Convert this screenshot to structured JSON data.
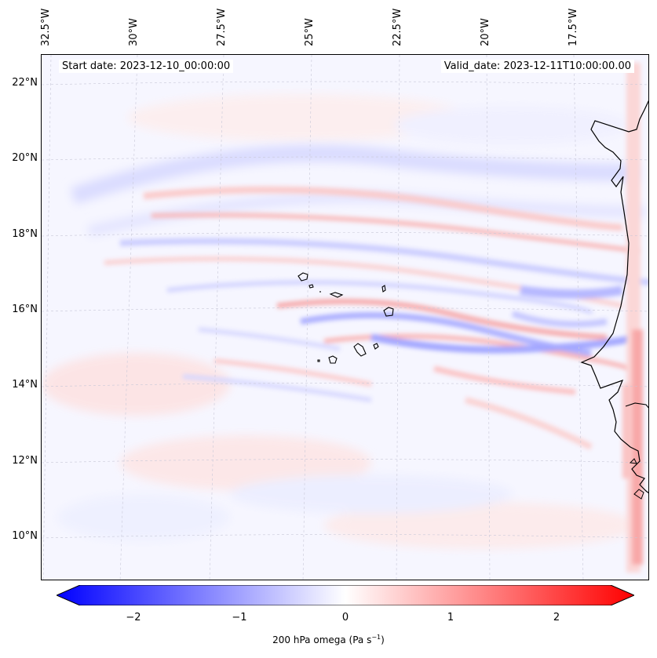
{
  "map": {
    "start_date": "Start date: 2023-12-10_00:00:00",
    "valid_date": "Valid_date: 2023-12-11T10:00:00.00",
    "lon_labels": [
      "32.5°W",
      "30°W",
      "27.5°W",
      "25°W",
      "22.5°W",
      "20°W",
      "17.5°W"
    ],
    "lat_labels": [
      "22°N",
      "20°N",
      "18°N",
      "16°N",
      "14°N",
      "12°N",
      "10°N"
    ],
    "region": "Cabo Verde and West African coast",
    "field": "200 hPa omega"
  },
  "colorbar": {
    "ticks": [
      "−2",
      "−1",
      "0",
      "1",
      "2"
    ],
    "label": "200 hPa omega (Pa s",
    "label_sup": "−1",
    "label_end": ")",
    "min_color": "#0000ff",
    "mid_color": "#ffffff",
    "max_color": "#ff0000"
  }
}
